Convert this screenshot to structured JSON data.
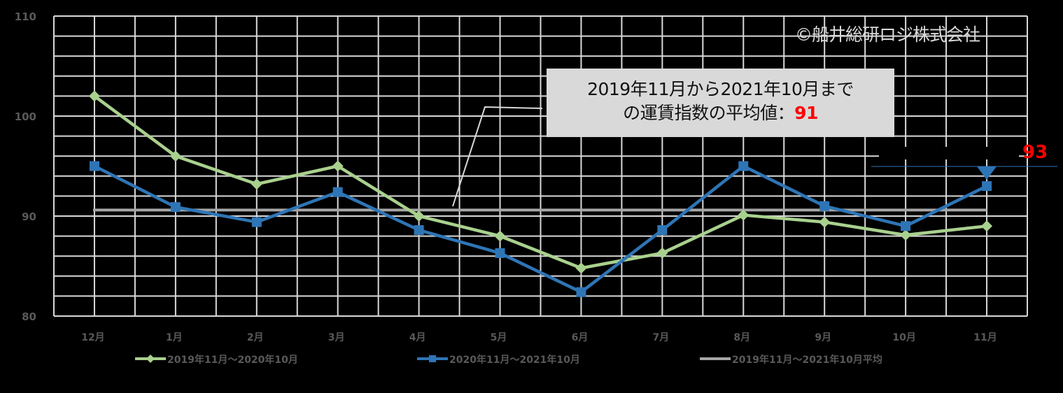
{
  "chart_data": {
    "type": "line",
    "title": "",
    "xlabel": "",
    "ylabel": "",
    "ylim": [
      80,
      110
    ],
    "yticks": [
      80,
      90,
      100,
      110
    ],
    "ygrid_step": 2,
    "grid": true,
    "legend_position": "bottom",
    "categories": [
      "12月",
      "1月",
      "2月",
      "3月",
      "4月",
      "5月",
      "6月",
      "7月",
      "8月",
      "9月",
      "10月",
      "11月"
    ],
    "series": [
      {
        "name": "2019年11月～2020年10月",
        "color": "#a9d18e",
        "marker": "diamond",
        "values": [
          102.0,
          96.0,
          93.2,
          95.0,
          90.0,
          88.0,
          84.8,
          86.3,
          90.1,
          89.4,
          88.1,
          89.0
        ]
      },
      {
        "name": "2020年11月～2021年10月",
        "color": "#2e75b6",
        "marker": "square",
        "values": [
          95.0,
          90.9,
          89.4,
          92.4,
          88.6,
          86.3,
          82.4,
          88.6,
          95.0,
          91.0,
          89.0,
          93.0
        ]
      },
      {
        "name": "2019年11月～2021年10月平均",
        "color": "#a6a6a6",
        "marker": "none",
        "values": [
          90.6,
          90.6,
          90.6,
          90.6,
          90.6,
          90.6,
          90.6,
          90.6,
          90.6,
          90.6,
          90.6,
          90.6
        ]
      }
    ],
    "annotations": [
      {
        "type": "callout",
        "text_line1": "2019年11月から2021年10月まで",
        "text_line2_prefix": "の運賃指数の平均値：",
        "highlight_value": "91"
      },
      {
        "type": "point_label",
        "category": "11月",
        "series": "2020年11月～2021年10月",
        "highlight_value": "93"
      }
    ]
  },
  "copyright": "©船井総研ロジ株式会社",
  "colors": {
    "background": "#000000",
    "grid": "#d9d9d9",
    "axis_text": "#595959",
    "callout_bg": "#d9d9d9",
    "highlight": "#ff0000",
    "pointer": "#2e75b6"
  }
}
